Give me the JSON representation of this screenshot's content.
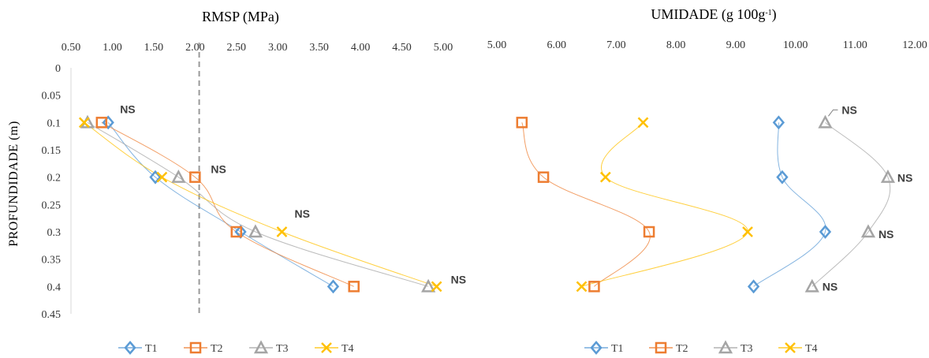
{
  "colors": {
    "T1": "#5B9BD5",
    "T2": "#ED7D31",
    "T3": "#A5A5A5",
    "T4": "#FFC000"
  },
  "chart_data": [
    {
      "type": "scatter",
      "title": "RMSP (MPa)",
      "ylabel": "PROFUNDIDADE (m)",
      "xlim": [
        0.5,
        5.0
      ],
      "ylim": [
        0,
        0.45
      ],
      "x_axis_position": "top",
      "y_inverted": true,
      "x_ticks": [
        "0.50",
        "1.00",
        "1.50",
        "2.00",
        "2.50",
        "3.00",
        "3.50",
        "4.00",
        "4.50",
        "5.00"
      ],
      "y_ticks": [
        "0",
        "0.05",
        "0.1",
        "0.15",
        "0.2",
        "0.25",
        "0.3",
        "0.35",
        "0.4",
        "0.45"
      ],
      "reference_line": {
        "x": 2.05,
        "style": "dashed"
      },
      "series": [
        {
          "name": "T1",
          "marker": "diamond",
          "points": [
            [
              0.95,
              0.1
            ],
            [
              1.52,
              0.2
            ],
            [
              2.55,
              0.3
            ],
            [
              3.67,
              0.4
            ]
          ]
        },
        {
          "name": "T2",
          "marker": "square",
          "points": [
            [
              0.87,
              0.1
            ],
            [
              2.0,
              0.2
            ],
            [
              2.5,
              0.3
            ],
            [
              3.92,
              0.4
            ]
          ]
        },
        {
          "name": "T3",
          "marker": "triangle",
          "points": [
            [
              0.7,
              0.1
            ],
            [
              1.8,
              0.2
            ],
            [
              2.73,
              0.3
            ],
            [
              4.82,
              0.4
            ]
          ]
        },
        {
          "name": "T4",
          "marker": "x",
          "points": [
            [
              0.66,
              0.1
            ],
            [
              1.6,
              0.2
            ],
            [
              3.05,
              0.3
            ],
            [
              4.92,
              0.4
            ]
          ]
        }
      ],
      "annotations": [
        {
          "text": "NS",
          "x": 0.95,
          "y": 0.1
        },
        {
          "text": "NS",
          "x": 2.0,
          "y": 0.2
        },
        {
          "text": "NS",
          "x": 3.05,
          "y": 0.3
        },
        {
          "text": "NS",
          "x": 4.92,
          "y": 0.4
        }
      ],
      "legend": [
        "T1",
        "T2",
        "T3",
        "T4"
      ],
      "legend_position": "bottom"
    },
    {
      "type": "scatter",
      "title": "UMIDADE (g 100g-1)",
      "title_main": "UMIDADE (g 100g",
      "title_sup": "-1",
      "title_end": ")",
      "xlim": [
        5.0,
        12.0
      ],
      "ylim": [
        0,
        0.45
      ],
      "x_axis_position": "top",
      "y_inverted": true,
      "x_ticks": [
        "5.00",
        "6.00",
        "7.00",
        "8.00",
        "9.00",
        "10.00",
        "11.00",
        "12.00"
      ],
      "series": [
        {
          "name": "T1",
          "marker": "diamond",
          "points": [
            [
              9.72,
              0.1
            ],
            [
              9.78,
              0.2
            ],
            [
              10.5,
              0.3
            ],
            [
              9.3,
              0.4
            ]
          ]
        },
        {
          "name": "T2",
          "marker": "square",
          "points": [
            [
              5.42,
              0.1
            ],
            [
              5.78,
              0.2
            ],
            [
              7.55,
              0.3
            ],
            [
              6.63,
              0.4
            ]
          ]
        },
        {
          "name": "T3",
          "marker": "triangle",
          "points": [
            [
              10.5,
              0.1
            ],
            [
              11.55,
              0.2
            ],
            [
              11.22,
              0.3
            ],
            [
              10.28,
              0.4
            ]
          ]
        },
        {
          "name": "T4",
          "marker": "x",
          "points": [
            [
              7.45,
              0.1
            ],
            [
              6.82,
              0.2
            ],
            [
              9.2,
              0.3
            ],
            [
              6.42,
              0.4
            ]
          ]
        }
      ],
      "annotations": [
        {
          "text": "NS",
          "x": 10.5,
          "y": 0.1
        },
        {
          "text": "NS",
          "x": 11.55,
          "y": 0.2
        },
        {
          "text": "NS",
          "x": 11.22,
          "y": 0.3
        },
        {
          "text": "NS",
          "x": 10.28,
          "y": 0.4
        }
      ],
      "legend": [
        "T1",
        "T2",
        "T3",
        "T4"
      ],
      "legend_position": "bottom"
    }
  ]
}
